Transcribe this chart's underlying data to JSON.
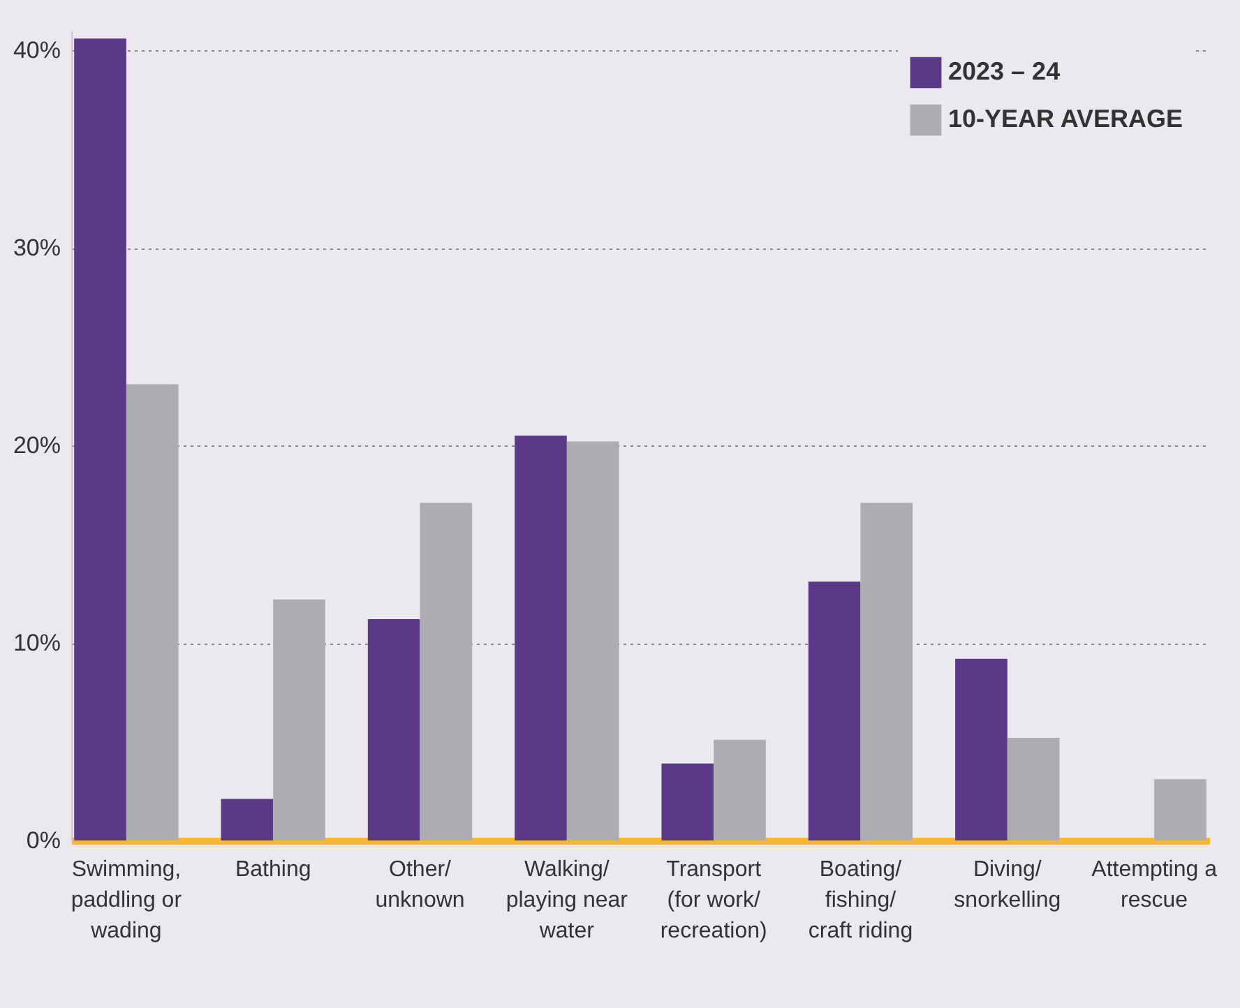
{
  "chart_data": {
    "type": "bar",
    "categories": [
      "Swimming, paddling or wading",
      "Bathing",
      "Other/unknown",
      "Walking/playing near water",
      "Transport (for work/recreation)",
      "Boating/fishing/craft riding",
      "Diving/snorkelling",
      "Attempting a rescue"
    ],
    "series": [
      {
        "name": "2023 – 24",
        "color": "#5a3a86",
        "values": [
          40.6,
          2.1,
          11.2,
          20.5,
          3.9,
          13.1,
          9.2,
          0
        ]
      },
      {
        "name": "10-YEAR AVERAGE",
        "color": "#adacb1",
        "values": [
          23.1,
          12.2,
          17.1,
          20.2,
          5.1,
          17.1,
          5.2,
          3.1
        ]
      }
    ],
    "ylim": [
      0,
      41
    ],
    "yticks": [
      {
        "value": 0,
        "label": "0%"
      },
      {
        "value": 10,
        "label": "10%"
      },
      {
        "value": 20,
        "label": "20%"
      },
      {
        "value": 30,
        "label": "30%"
      },
      {
        "value": 40,
        "label": "40%"
      }
    ],
    "grid": "y",
    "legend": "top right"
  }
}
